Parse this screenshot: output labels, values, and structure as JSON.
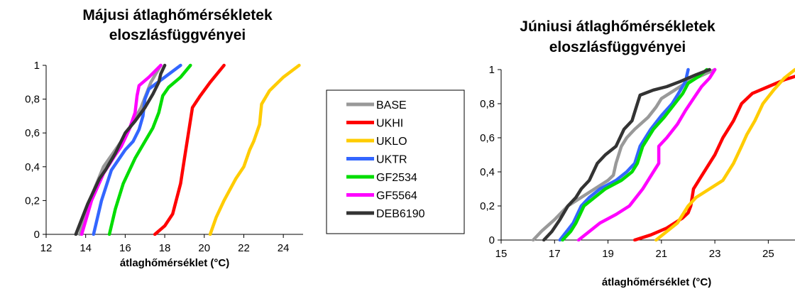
{
  "legend": [
    {
      "name": "BASE",
      "color": "#999999"
    },
    {
      "name": "UKHI",
      "color": "#ff0000"
    },
    {
      "name": "UKLO",
      "color": "#ffcc00"
    },
    {
      "name": "UKTR",
      "color": "#3366ff"
    },
    {
      "name": "GF2534",
      "color": "#00dd00"
    },
    {
      "name": "GF5564",
      "color": "#ff00ff"
    },
    {
      "name": "DEB6190",
      "color": "#333333"
    }
  ],
  "chart_data": [
    {
      "type": "line",
      "title": [
        "Májusi átlaghőmérsékletek",
        "eloszlásfüggvényei"
      ],
      "xlabel": "átlaghőmérséklet (°C)",
      "ylabel": "",
      "xlim": [
        12,
        25
      ],
      "ylim": [
        0,
        1
      ],
      "xticks": [
        "12",
        "14",
        "16",
        "18",
        "20",
        "22",
        "24"
      ],
      "xtick_values": [
        12,
        14,
        16,
        18,
        20,
        22,
        24
      ],
      "yticks": [
        "0",
        "0,2",
        "0,4",
        "0,6",
        "0,8",
        "1"
      ],
      "ytick_values": [
        0,
        0.2,
        0.4,
        0.6,
        0.8,
        1
      ],
      "series": [
        {
          "name": "BASE",
          "color": "#999999",
          "points": [
            [
              13.7,
              0
            ],
            [
              14.2,
              0.2
            ],
            [
              14.9,
              0.4
            ],
            [
              15.5,
              0.5
            ],
            [
              16.1,
              0.6
            ],
            [
              16.8,
              0.75
            ],
            [
              17.3,
              0.9
            ],
            [
              17.8,
              1
            ]
          ]
        },
        {
          "name": "UKHI",
          "color": "#ff0000",
          "points": [
            [
              17.5,
              0
            ],
            [
              18.0,
              0.05
            ],
            [
              18.4,
              0.12
            ],
            [
              18.8,
              0.3
            ],
            [
              19.0,
              0.45
            ],
            [
              19.2,
              0.6
            ],
            [
              19.4,
              0.75
            ],
            [
              19.8,
              0.82
            ],
            [
              20.3,
              0.9
            ],
            [
              21.0,
              1
            ]
          ]
        },
        {
          "name": "UKLO",
          "color": "#ffcc00",
          "points": [
            [
              20.3,
              0
            ],
            [
              20.6,
              0.1
            ],
            [
              21.0,
              0.2
            ],
            [
              21.6,
              0.33
            ],
            [
              22.0,
              0.4
            ],
            [
              22.3,
              0.5
            ],
            [
              22.5,
              0.55
            ],
            [
              22.8,
              0.65
            ],
            [
              22.9,
              0.77
            ],
            [
              23.3,
              0.85
            ],
            [
              24.0,
              0.93
            ],
            [
              24.8,
              1
            ]
          ]
        },
        {
          "name": "UKTR",
          "color": "#3366ff",
          "points": [
            [
              14.4,
              0
            ],
            [
              14.8,
              0.2
            ],
            [
              15.3,
              0.38
            ],
            [
              16.0,
              0.5
            ],
            [
              16.4,
              0.55
            ],
            [
              16.7,
              0.62
            ],
            [
              16.9,
              0.7
            ],
            [
              17.0,
              0.8
            ],
            [
              17.2,
              0.86
            ],
            [
              18.0,
              0.93
            ],
            [
              18.8,
              1
            ]
          ]
        },
        {
          "name": "GF2534",
          "color": "#00dd00",
          "points": [
            [
              15.2,
              0
            ],
            [
              15.5,
              0.15
            ],
            [
              15.9,
              0.3
            ],
            [
              16.5,
              0.45
            ],
            [
              17.0,
              0.55
            ],
            [
              17.4,
              0.63
            ],
            [
              17.7,
              0.72
            ],
            [
              17.9,
              0.82
            ],
            [
              18.2,
              0.87
            ],
            [
              18.8,
              0.93
            ],
            [
              19.3,
              1
            ]
          ]
        },
        {
          "name": "GF5564",
          "color": "#ff00ff",
          "points": [
            [
              13.8,
              0
            ],
            [
              14.3,
              0.2
            ],
            [
              14.9,
              0.36
            ],
            [
              15.5,
              0.47
            ],
            [
              15.8,
              0.52
            ],
            [
              16.2,
              0.62
            ],
            [
              16.5,
              0.72
            ],
            [
              16.6,
              0.82
            ],
            [
              16.7,
              0.88
            ],
            [
              17.2,
              0.93
            ],
            [
              17.8,
              1
            ]
          ]
        },
        {
          "name": "DEB6190",
          "color": "#333333",
          "points": [
            [
              13.5,
              0
            ],
            [
              14.1,
              0.18
            ],
            [
              14.7,
              0.33
            ],
            [
              15.0,
              0.38
            ],
            [
              15.5,
              0.48
            ],
            [
              16.0,
              0.6
            ],
            [
              16.5,
              0.67
            ],
            [
              17.0,
              0.75
            ],
            [
              17.4,
              0.83
            ],
            [
              17.7,
              0.9
            ],
            [
              17.8,
              0.95
            ],
            [
              18.0,
              1
            ]
          ]
        }
      ]
    },
    {
      "type": "line",
      "title": [
        "Júniusi átlaghőmérsékletek",
        "eloszlásfüggvényei"
      ],
      "xlabel": "átlaghőmérséklet (°C)",
      "ylabel": "",
      "xlim": [
        15,
        26
      ],
      "ylim": [
        0,
        1
      ],
      "xticks": [
        "15",
        "17",
        "19",
        "21",
        "23",
        "25"
      ],
      "xtick_values": [
        15,
        17,
        19,
        21,
        23,
        25
      ],
      "yticks": [
        "0",
        "0,2",
        "0,4",
        "0,6",
        "0,8",
        "1"
      ],
      "ytick_values": [
        0,
        0.2,
        0.4,
        0.6,
        0.8,
        1
      ],
      "series": [
        {
          "name": "BASE",
          "color": "#999999",
          "points": [
            [
              16.2,
              0
            ],
            [
              16.5,
              0.05
            ],
            [
              17.0,
              0.12
            ],
            [
              17.5,
              0.2
            ],
            [
              18.0,
              0.25
            ],
            [
              18.5,
              0.3
            ],
            [
              19.0,
              0.35
            ],
            [
              19.2,
              0.38
            ],
            [
              19.3,
              0.45
            ],
            [
              19.5,
              0.55
            ],
            [
              19.7,
              0.6
            ],
            [
              20.0,
              0.65
            ],
            [
              20.5,
              0.72
            ],
            [
              20.8,
              0.78
            ],
            [
              21.0,
              0.83
            ],
            [
              21.5,
              0.88
            ],
            [
              22.0,
              0.93
            ],
            [
              23.0,
              1
            ]
          ]
        },
        {
          "name": "UKHI",
          "color": "#ff0000",
          "points": [
            [
              20.0,
              0
            ],
            [
              20.6,
              0.03
            ],
            [
              21.2,
              0.07
            ],
            [
              21.8,
              0.13
            ],
            [
              22.0,
              0.16
            ],
            [
              22.1,
              0.2
            ],
            [
              22.2,
              0.3
            ],
            [
              22.4,
              0.35
            ],
            [
              22.6,
              0.4
            ],
            [
              23.0,
              0.5
            ],
            [
              23.3,
              0.6
            ],
            [
              23.7,
              0.7
            ],
            [
              24.0,
              0.8
            ],
            [
              24.4,
              0.86
            ],
            [
              25.0,
              0.9
            ],
            [
              25.6,
              0.94
            ],
            [
              26.0,
              0.96
            ]
          ]
        },
        {
          "name": "UKLO",
          "color": "#ffcc00",
          "points": [
            [
              20.8,
              0
            ],
            [
              21.2,
              0.05
            ],
            [
              21.6,
              0.1
            ],
            [
              22.0,
              0.2
            ],
            [
              22.3,
              0.25
            ],
            [
              22.8,
              0.3
            ],
            [
              23.3,
              0.35
            ],
            [
              23.7,
              0.45
            ],
            [
              24.0,
              0.55
            ],
            [
              24.2,
              0.62
            ],
            [
              24.5,
              0.7
            ],
            [
              24.8,
              0.8
            ],
            [
              25.2,
              0.88
            ],
            [
              25.6,
              0.95
            ],
            [
              26.0,
              1
            ]
          ]
        },
        {
          "name": "UKTR",
          "color": "#3366ff",
          "points": [
            [
              17.2,
              0
            ],
            [
              17.5,
              0.06
            ],
            [
              17.7,
              0.1
            ],
            [
              18.0,
              0.2
            ],
            [
              18.3,
              0.25
            ],
            [
              18.7,
              0.3
            ],
            [
              19.3,
              0.35
            ],
            [
              19.7,
              0.4
            ],
            [
              20.0,
              0.45
            ],
            [
              20.2,
              0.55
            ],
            [
              20.6,
              0.65
            ],
            [
              21.0,
              0.73
            ],
            [
              21.4,
              0.8
            ],
            [
              21.6,
              0.85
            ],
            [
              21.9,
              0.93
            ],
            [
              22.0,
              1
            ]
          ]
        },
        {
          "name": "GF2534",
          "color": "#00dd00",
          "points": [
            [
              17.3,
              0
            ],
            [
              17.6,
              0.05
            ],
            [
              17.8,
              0.1
            ],
            [
              18.1,
              0.2
            ],
            [
              18.5,
              0.25
            ],
            [
              18.9,
              0.3
            ],
            [
              19.5,
              0.35
            ],
            [
              19.9,
              0.4
            ],
            [
              20.1,
              0.45
            ],
            [
              20.3,
              0.55
            ],
            [
              20.7,
              0.65
            ],
            [
              21.1,
              0.72
            ],
            [
              21.5,
              0.8
            ],
            [
              21.8,
              0.86
            ],
            [
              22.0,
              0.92
            ],
            [
              22.4,
              0.96
            ],
            [
              22.7,
              1
            ]
          ]
        },
        {
          "name": "GF5564",
          "color": "#ff00ff",
          "points": [
            [
              17.9,
              0
            ],
            [
              18.3,
              0.05
            ],
            [
              18.7,
              0.1
            ],
            [
              19.3,
              0.15
            ],
            [
              19.8,
              0.2
            ],
            [
              20.3,
              0.3
            ],
            [
              20.7,
              0.4
            ],
            [
              20.9,
              0.45
            ],
            [
              20.9,
              0.55
            ],
            [
              21.2,
              0.6
            ],
            [
              21.6,
              0.68
            ],
            [
              21.9,
              0.76
            ],
            [
              22.2,
              0.83
            ],
            [
              22.5,
              0.9
            ],
            [
              22.8,
              0.95
            ],
            [
              23.0,
              1
            ]
          ]
        },
        {
          "name": "DEB6190",
          "color": "#333333",
          "points": [
            [
              16.6,
              0
            ],
            [
              16.9,
              0.05
            ],
            [
              17.2,
              0.12
            ],
            [
              17.5,
              0.2
            ],
            [
              17.8,
              0.25
            ],
            [
              18.0,
              0.3
            ],
            [
              18.3,
              0.35
            ],
            [
              18.6,
              0.45
            ],
            [
              18.9,
              0.5
            ],
            [
              19.3,
              0.55
            ],
            [
              19.6,
              0.65
            ],
            [
              19.9,
              0.7
            ],
            [
              20.1,
              0.8
            ],
            [
              20.2,
              0.85
            ],
            [
              20.7,
              0.88
            ],
            [
              21.2,
              0.9
            ],
            [
              21.7,
              0.93
            ],
            [
              22.3,
              0.97
            ],
            [
              22.8,
              1
            ]
          ]
        }
      ]
    }
  ]
}
